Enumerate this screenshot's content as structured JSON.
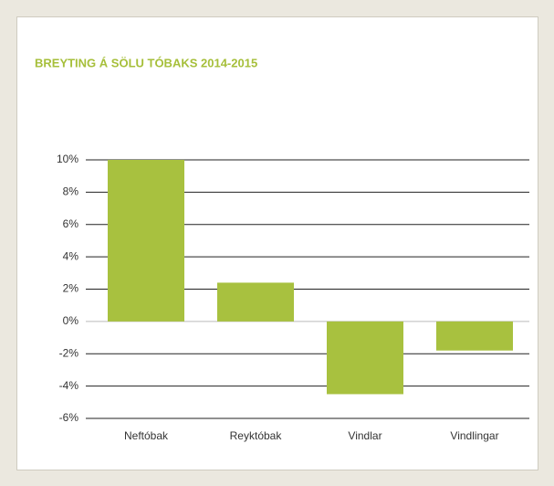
{
  "chart_data": {
    "type": "bar",
    "title": "BREYTING Á SÖLU TÓBAKS 2014-2015",
    "categories": [
      "Neftóbak",
      "Reyktóbak",
      "Vindlar",
      "Vindlingar"
    ],
    "values": [
      10,
      2.4,
      -4.5,
      -1.8
    ],
    "color": "#a8c13f",
    "ylim": [
      -6,
      10
    ],
    "yticks": [
      {
        "value": -6,
        "label": "-6%"
      },
      {
        "value": -4,
        "label": "-4%"
      },
      {
        "value": -2,
        "label": "-2%"
      },
      {
        "value": 0,
        "label": "0%"
      },
      {
        "value": 2,
        "label": "2%"
      },
      {
        "value": 4,
        "label": "4%"
      },
      {
        "value": 6,
        "label": "6%"
      },
      {
        "value": 8,
        "label": "8%"
      },
      {
        "value": 10,
        "label": "10%"
      }
    ],
    "grid": true
  }
}
